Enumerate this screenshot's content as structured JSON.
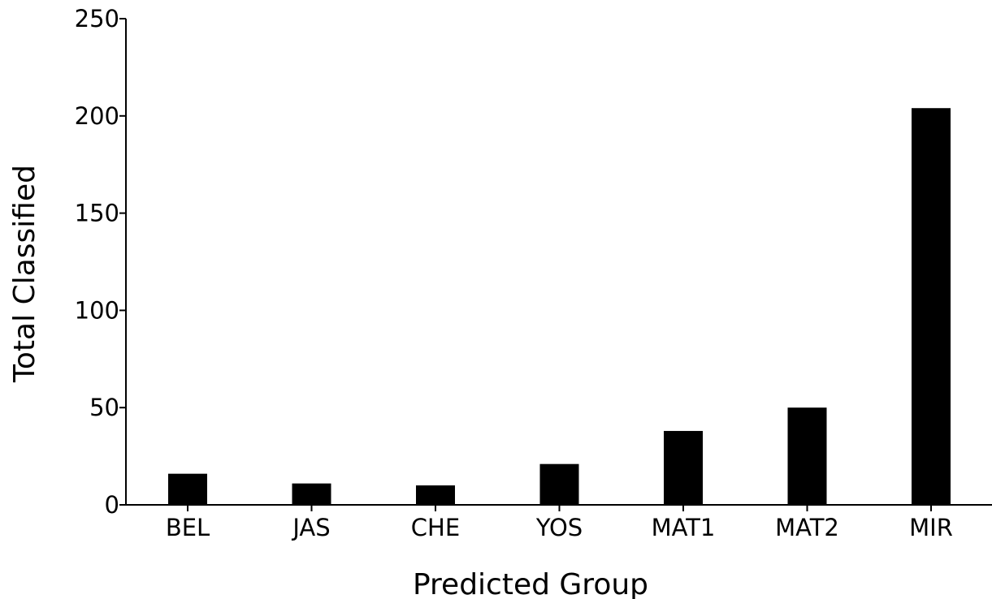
{
  "chart_data": {
    "type": "bar",
    "title": "",
    "xlabel": "Predicted Group",
    "ylabel": "Total Classified",
    "categories": [
      "BEL",
      "JAS",
      "CHE",
      "YOS",
      "MAT1",
      "MAT2",
      "MIR"
    ],
    "values": [
      16,
      11,
      10,
      21,
      38,
      50,
      204
    ],
    "ylim": [
      0,
      250
    ],
    "yticks": [
      0,
      50,
      100,
      150,
      200,
      250
    ],
    "grid": false,
    "bar_color": "#000000",
    "axis_color": "#000000"
  }
}
